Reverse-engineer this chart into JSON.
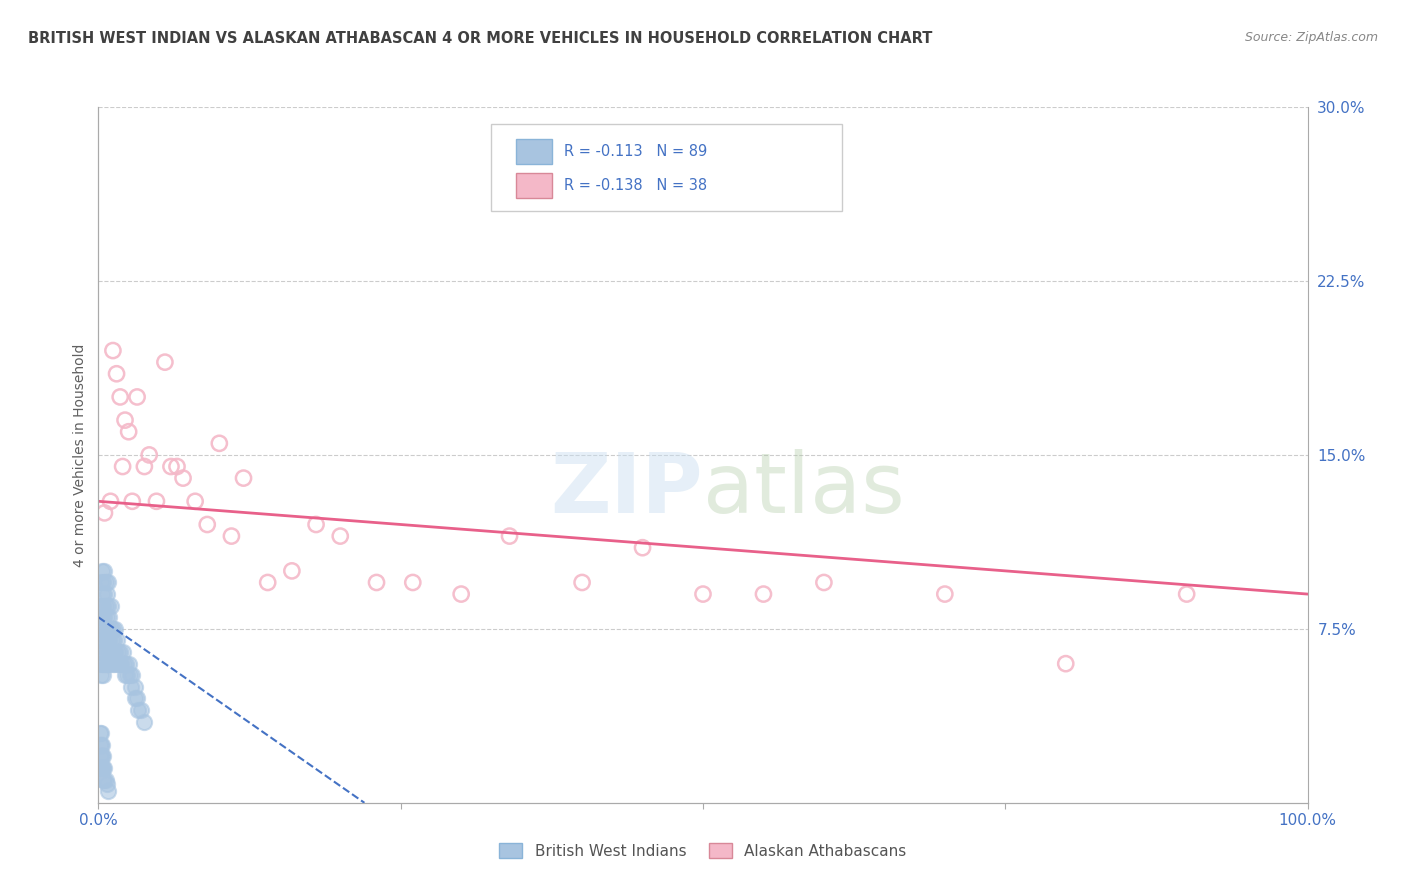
{
  "title": "BRITISH WEST INDIAN VS ALASKAN ATHABASCAN 4 OR MORE VEHICLES IN HOUSEHOLD CORRELATION CHART",
  "source": "Source: ZipAtlas.com",
  "ylabel": "4 or more Vehicles in Household",
  "xlim": [
    0,
    1.0
  ],
  "ylim": [
    0,
    0.3
  ],
  "ytick_right_labels": [
    "7.5%",
    "15.0%",
    "22.5%",
    "30.0%"
  ],
  "ytick_right_vals": [
    0.075,
    0.15,
    0.225,
    0.3
  ],
  "grid_color": "#cccccc",
  "background_color": "#ffffff",
  "blue_scatter_color": "#a8c4e0",
  "pink_scatter_color": "#f4b8c8",
  "blue_line_color": "#4472c4",
  "pink_line_color": "#e8608a",
  "legend_text_color": "#4472c4",
  "axis_tick_color": "#4472c4",
  "title_color": "#404040",
  "ylabel_color": "#606060",
  "legend_R1": "R = -0.113",
  "legend_N1": "N = 89",
  "legend_R2": "R = -0.138",
  "legend_N2": "N = 38",
  "legend_label1": "British West Indians",
  "legend_label2": "Alaskan Athabascans",
  "title_fontsize": 10.5,
  "tick_fontsize": 11,
  "ylabel_fontsize": 10,
  "blue_scatter_x": [
    0.001,
    0.001,
    0.001,
    0.002,
    0.002,
    0.002,
    0.002,
    0.002,
    0.003,
    0.003,
    0.003,
    0.003,
    0.003,
    0.004,
    0.004,
    0.004,
    0.004,
    0.004,
    0.005,
    0.005,
    0.005,
    0.005,
    0.005,
    0.006,
    0.006,
    0.006,
    0.006,
    0.007,
    0.007,
    0.007,
    0.007,
    0.008,
    0.008,
    0.008,
    0.008,
    0.009,
    0.009,
    0.009,
    0.01,
    0.01,
    0.01,
    0.011,
    0.011,
    0.012,
    0.012,
    0.013,
    0.013,
    0.014,
    0.014,
    0.015,
    0.015,
    0.016,
    0.017,
    0.018,
    0.019,
    0.02,
    0.021,
    0.022,
    0.023,
    0.024,
    0.025,
    0.026,
    0.027,
    0.028,
    0.03,
    0.03,
    0.032,
    0.033,
    0.035,
    0.038,
    0.001,
    0.001,
    0.001,
    0.001,
    0.002,
    0.002,
    0.002,
    0.002,
    0.003,
    0.003,
    0.003,
    0.004,
    0.004,
    0.004,
    0.005,
    0.005,
    0.006,
    0.007,
    0.008
  ],
  "blue_scatter_y": [
    0.06,
    0.07,
    0.08,
    0.055,
    0.065,
    0.075,
    0.085,
    0.095,
    0.06,
    0.07,
    0.08,
    0.09,
    0.1,
    0.055,
    0.065,
    0.075,
    0.085,
    0.095,
    0.06,
    0.07,
    0.08,
    0.09,
    0.1,
    0.065,
    0.075,
    0.085,
    0.095,
    0.06,
    0.07,
    0.08,
    0.09,
    0.065,
    0.075,
    0.085,
    0.095,
    0.06,
    0.07,
    0.08,
    0.065,
    0.075,
    0.085,
    0.06,
    0.07,
    0.065,
    0.075,
    0.06,
    0.07,
    0.065,
    0.075,
    0.06,
    0.07,
    0.065,
    0.06,
    0.065,
    0.06,
    0.065,
    0.06,
    0.055,
    0.06,
    0.055,
    0.06,
    0.055,
    0.05,
    0.055,
    0.05,
    0.045,
    0.045,
    0.04,
    0.04,
    0.035,
    0.03,
    0.025,
    0.02,
    0.015,
    0.03,
    0.025,
    0.02,
    0.015,
    0.025,
    0.02,
    0.015,
    0.02,
    0.015,
    0.01,
    0.015,
    0.01,
    0.01,
    0.008,
    0.005
  ],
  "pink_scatter_x": [
    0.005,
    0.01,
    0.012,
    0.015,
    0.018,
    0.02,
    0.022,
    0.025,
    0.028,
    0.032,
    0.038,
    0.042,
    0.048,
    0.055,
    0.06,
    0.065,
    0.07,
    0.08,
    0.09,
    0.1,
    0.11,
    0.12,
    0.14,
    0.16,
    0.18,
    0.2,
    0.23,
    0.26,
    0.3,
    0.34,
    0.4,
    0.45,
    0.5,
    0.55,
    0.6,
    0.7,
    0.8,
    0.9
  ],
  "pink_scatter_y": [
    0.125,
    0.13,
    0.195,
    0.185,
    0.175,
    0.145,
    0.165,
    0.16,
    0.13,
    0.175,
    0.145,
    0.15,
    0.13,
    0.19,
    0.145,
    0.145,
    0.14,
    0.13,
    0.12,
    0.155,
    0.115,
    0.14,
    0.095,
    0.1,
    0.12,
    0.115,
    0.095,
    0.095,
    0.09,
    0.115,
    0.095,
    0.11,
    0.09,
    0.09,
    0.095,
    0.09,
    0.06,
    0.09
  ],
  "pink_line_start_y": 0.13,
  "pink_line_end_y": 0.09,
  "blue_line_start_x": 0.0,
  "blue_line_start_y": 0.08,
  "blue_line_end_x": 0.22,
  "blue_line_end_y": 0.0
}
